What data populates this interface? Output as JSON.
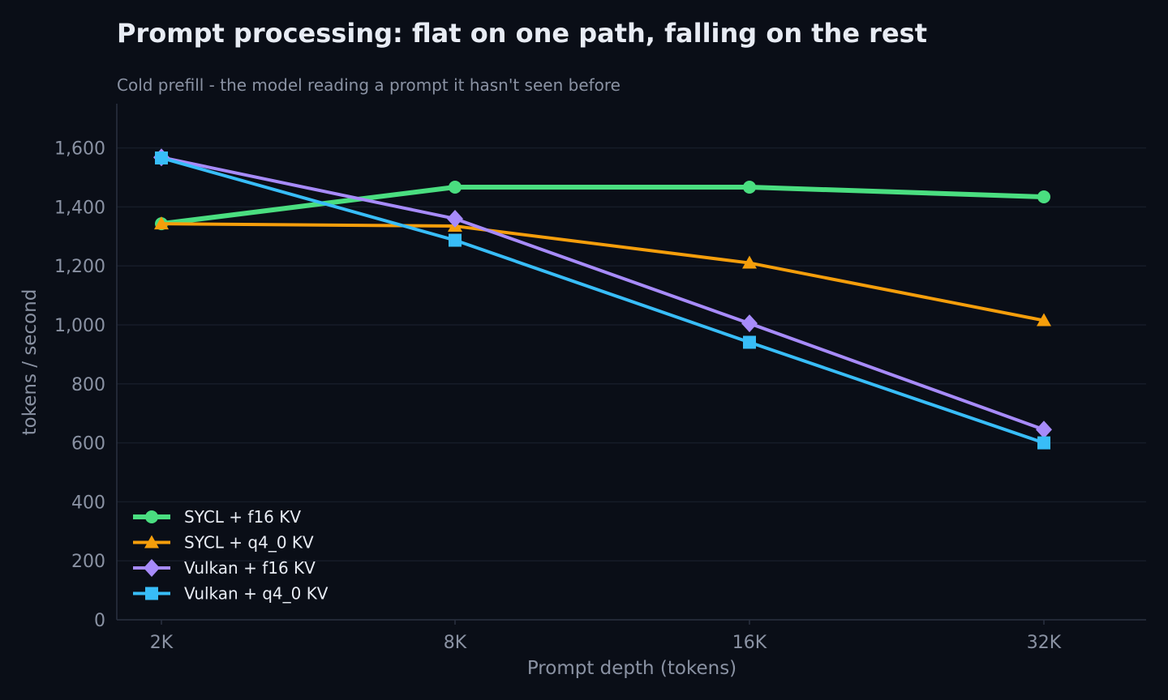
{
  "chart_data": {
    "type": "line",
    "title": "Prompt processing: flat on one path, falling on the rest",
    "subtitle": "Cold prefill - the model reading a prompt it hasn't seen before",
    "xlabel": "Prompt depth (tokens)",
    "ylabel": "tokens / second",
    "categories": [
      "2K",
      "8K",
      "16K",
      "32K"
    ],
    "ylim": [
      0,
      1750
    ],
    "yticks": [
      0,
      200,
      400,
      600,
      800,
      1000,
      1200,
      1400,
      1600
    ],
    "ytick_labels": [
      "0",
      "200",
      "400",
      "600",
      "800",
      "1,000",
      "1,200",
      "1,400",
      "1,600"
    ],
    "grid": true,
    "legend_position": "bottom-left",
    "series": [
      {
        "name": "SYCL + f16 KV",
        "values": [
          1343,
          1467,
          1467,
          1434
        ],
        "color": "#4ade80",
        "marker": "circle"
      },
      {
        "name": "SYCL + q4_0 KV",
        "values": [
          1343,
          1335,
          1210,
          1015
        ],
        "color": "#f59e0b",
        "marker": "triangle"
      },
      {
        "name": "Vulkan + f16 KV",
        "values": [
          1568,
          1360,
          1005,
          645
        ],
        "color": "#a78bfa",
        "marker": "diamond"
      },
      {
        "name": "Vulkan + q4_0 KV",
        "values": [
          1566,
          1287,
          941,
          600
        ],
        "color": "#38bdf8",
        "marker": "square"
      }
    ]
  }
}
